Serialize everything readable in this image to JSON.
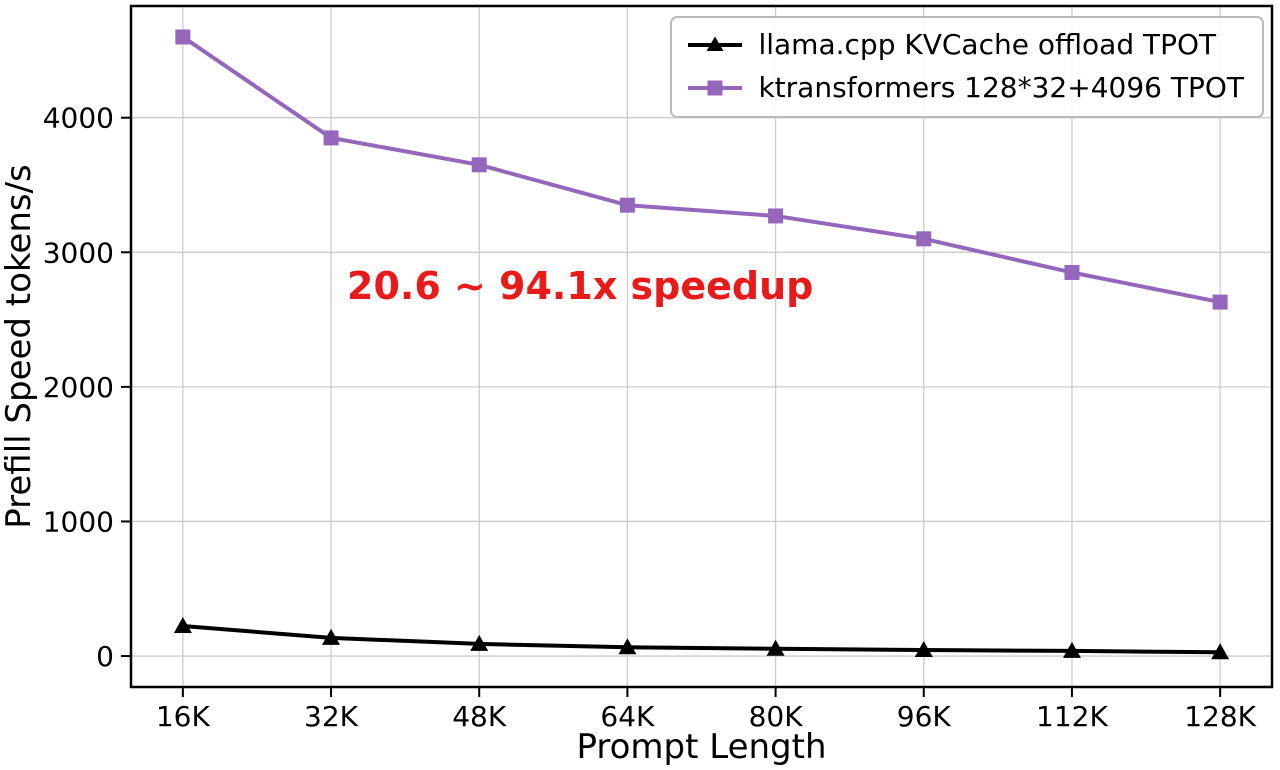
{
  "chart_data": {
    "type": "line",
    "title": "",
    "xlabel": "Prompt Length",
    "ylabel": "Prefill Speed tokens/s",
    "categories": [
      "16K",
      "32K",
      "48K",
      "64K",
      "80K",
      "96K",
      "112K",
      "128K"
    ],
    "series": [
      {
        "name": "llama.cpp KVCache offload TPOT",
        "color": "#000000",
        "marker": "triangle",
        "values": [
          223,
          135,
          90,
          65,
          54,
          45,
          38,
          28
        ]
      },
      {
        "name": "ktransformers 128*32+4096 TPOT",
        "color": "#9467bd",
        "marker": "square",
        "values": [
          4600,
          3850,
          3650,
          3350,
          3270,
          3100,
          2850,
          2630
        ]
      }
    ],
    "yticks": [
      0,
      1000,
      2000,
      3000,
      4000
    ],
    "ylim": [
      -230,
      4830
    ],
    "grid": true,
    "grid_color": "#cccccc",
    "legend_position": "top-right",
    "annotation": {
      "text": "20.6 ~ 94.1x speedup",
      "color": "#e81a1a"
    }
  }
}
